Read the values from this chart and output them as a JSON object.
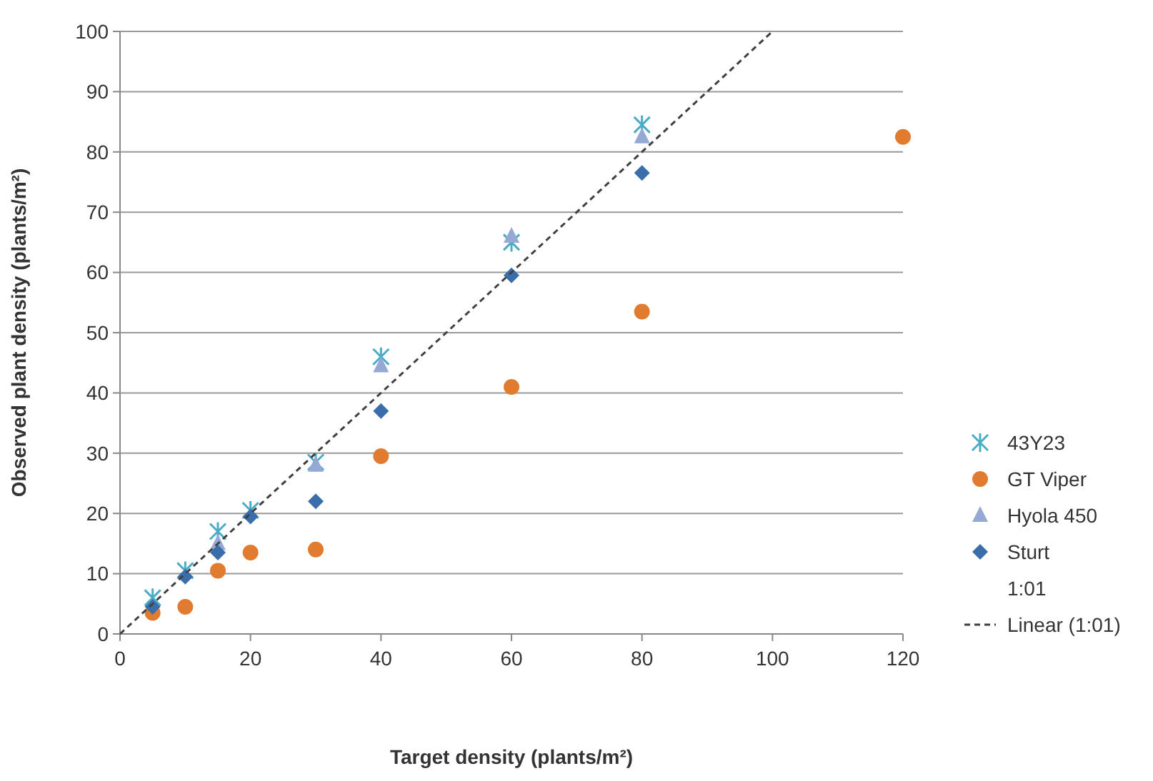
{
  "chart_data": {
    "type": "scatter",
    "xlabel": "Target density (plants/m²)",
    "ylabel": "Observed plant density (plants/m²)",
    "xlim": [
      0,
      120
    ],
    "xticks": [
      0,
      20,
      40,
      60,
      80,
      100,
      120
    ],
    "ylim": [
      0,
      100
    ],
    "yticks": [
      0,
      10,
      20,
      30,
      40,
      50,
      60,
      70,
      80,
      90,
      100
    ],
    "grid": "y",
    "legend": "right",
    "series": [
      {
        "name": "43Y23",
        "color": "#4bacc6",
        "marker": "cross",
        "x": [
          5,
          10,
          15,
          20,
          30,
          40,
          60,
          80
        ],
        "values": [
          6,
          10.5,
          17,
          20.5,
          28.5,
          46,
          65,
          84.5
        ]
      },
      {
        "name": "GT Viper",
        "color": "#e07b2f",
        "marker": "circle",
        "x": [
          5,
          10,
          15,
          20,
          30,
          40,
          60,
          80,
          120
        ],
        "values": [
          3.5,
          4.5,
          10.5,
          13.5,
          14,
          29.5,
          41,
          53.5,
          82.5
        ]
      },
      {
        "name": "Hyola 450",
        "color": "#95a9d4",
        "marker": "triangle",
        "x": [
          15,
          30,
          40,
          60,
          80
        ],
        "values": [
          15,
          28,
          44.5,
          66,
          82.5
        ]
      },
      {
        "name": "Sturt",
        "color": "#3a6eaa",
        "marker": "diamond",
        "x": [
          5,
          10,
          15,
          20,
          30,
          40,
          60,
          80
        ],
        "values": [
          4.5,
          9.5,
          13.5,
          19.5,
          22,
          37,
          59.5,
          76.5
        ]
      },
      {
        "name": "Linear (1:01)",
        "type": "line",
        "color": "#404040",
        "line_style": "dashed",
        "marker": "none",
        "x": [
          0,
          100
        ],
        "values": [
          0,
          100
        ]
      }
    ],
    "annotations": [
      "1:01"
    ]
  }
}
